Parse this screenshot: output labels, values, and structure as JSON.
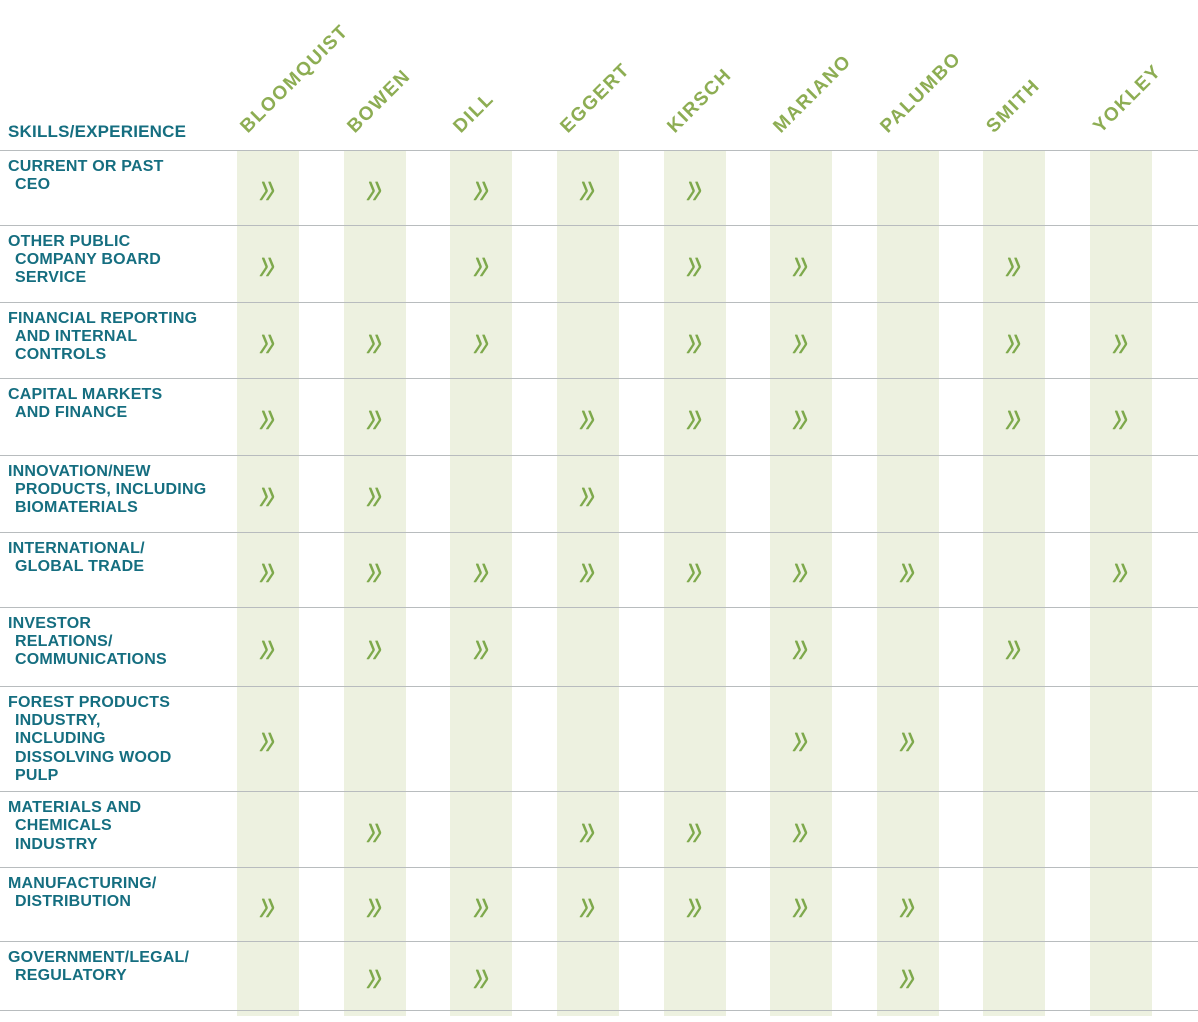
{
  "chart_data": {
    "type": "table",
    "title": "SKILLS/EXPERIENCE",
    "check_icon": "double-chevron-check-icon",
    "check_glyph": "»",
    "columns": [
      "BLOOMQUIST",
      "BOWEN",
      "DILL",
      "EGGERT",
      "KIRSCH",
      "MARIANO",
      "PALUMBO",
      "SMITH",
      "YOKLEY"
    ],
    "rows": [
      {
        "label": "CURRENT OR PAST\nCEO",
        "checks": [
          1,
          1,
          1,
          1,
          1,
          0,
          0,
          0,
          0
        ]
      },
      {
        "label": "OTHER PUBLIC\nCOMPANY BOARD\nSERVICE",
        "checks": [
          1,
          0,
          1,
          0,
          1,
          1,
          0,
          1,
          0
        ]
      },
      {
        "label": "FINANCIAL REPORTING\nAND INTERNAL\nCONTROLS",
        "checks": [
          1,
          1,
          1,
          0,
          1,
          1,
          0,
          1,
          1
        ]
      },
      {
        "label": "CAPITAL MARKETS\nAND FINANCE",
        "checks": [
          1,
          1,
          0,
          1,
          1,
          1,
          0,
          1,
          1
        ]
      },
      {
        "label": "INNOVATION/NEW\nPRODUCTS, INCLUDING\nBIOMATERIALS",
        "checks": [
          1,
          1,
          0,
          1,
          0,
          0,
          0,
          0,
          0
        ]
      },
      {
        "label": "INTERNATIONAL/\nGLOBAL TRADE",
        "checks": [
          1,
          1,
          1,
          1,
          1,
          1,
          1,
          0,
          1
        ]
      },
      {
        "label": "INVESTOR\nRELATIONS/\nCOMMUNICATIONS",
        "checks": [
          1,
          1,
          1,
          0,
          0,
          1,
          0,
          1,
          0
        ]
      },
      {
        "label": "FOREST PRODUCTS\nINDUSTRY,\nINCLUDING\nDISSOLVING WOOD\nPULP",
        "checks": [
          1,
          0,
          0,
          0,
          0,
          1,
          1,
          0,
          0
        ]
      },
      {
        "label": "MATERIALS AND\nCHEMICALS\nINDUSTRY",
        "checks": [
          0,
          1,
          0,
          1,
          1,
          1,
          0,
          0,
          0
        ]
      },
      {
        "label": "MANUFACTURING/\nDISTRIBUTION",
        "checks": [
          1,
          1,
          1,
          1,
          1,
          1,
          1,
          0,
          0
        ]
      },
      {
        "label": "GOVERNMENT/LEGAL/\nREGULATORY",
        "checks": [
          0,
          1,
          1,
          0,
          0,
          0,
          1,
          0,
          0
        ]
      }
    ],
    "colors": {
      "label_text": "#156e80",
      "member_text": "#8dad53",
      "check": "#7ea94c",
      "column_band": "#edf1e0",
      "grid_line": "#b8bcbe"
    }
  }
}
